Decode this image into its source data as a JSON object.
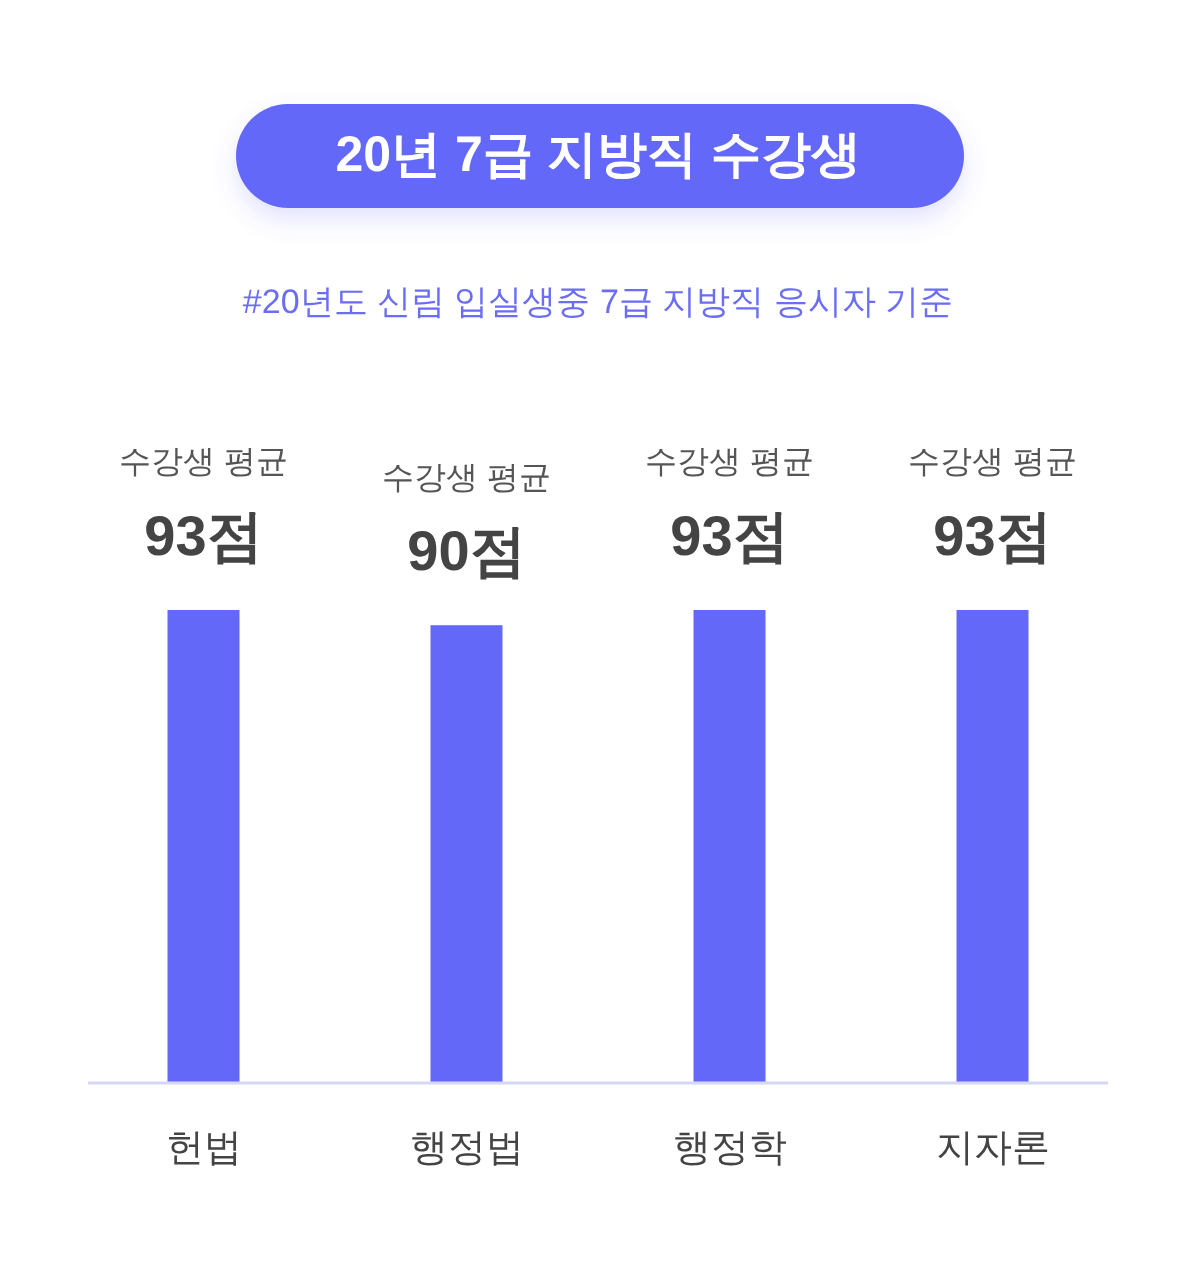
{
  "chart_data": {
    "type": "bar",
    "title": "20년 7급 지방직 수강생",
    "subtitle": "#20년도 신림 입실생중 7급 지방직 응시자 기준",
    "categories": [
      "헌법",
      "행정법",
      "행정학",
      "지자론"
    ],
    "values": [
      93,
      90,
      93,
      93
    ],
    "color": "#6468f8",
    "value_labels": [
      "수강생 평균\n93점",
      "수강생 평균\n90점",
      "수강생 평균\n93점",
      "수강생 평균\n93점"
    ]
  }
}
